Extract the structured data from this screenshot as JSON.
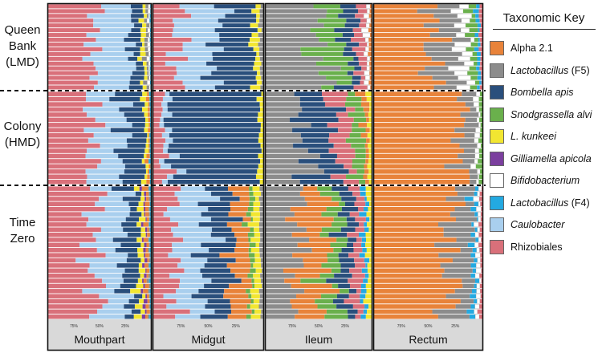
{
  "chart_data": {
    "type": "bar",
    "orientation": "horizontal-stacked-100",
    "title": "",
    "key_title": "Taxonomic Key",
    "xlabel": "",
    "ylabel": "",
    "xlim": [
      100,
      0
    ],
    "x_tick_labels": [
      "75%",
      "50%",
      "25%"
    ],
    "x_ticks": [
      75,
      50,
      25
    ],
    "groups": [
      {
        "name": "Queen Bank (LMD)",
        "lines": [
          "Queen",
          "Bank",
          "(LMD)"
        ],
        "n": 18
      },
      {
        "name": "Colony (HMD)",
        "lines": [
          "Colony",
          "(HMD)"
        ],
        "n": 18
      },
      {
        "name": "Time Zero",
        "lines": [
          "Time",
          "Zero"
        ],
        "n": 26
      }
    ],
    "panels": [
      "Mouthpart",
      "Midgut",
      "Ileum",
      "Rectum"
    ],
    "taxa": [
      {
        "name": "Alpha 2.1",
        "italic": "",
        "plain": "Alpha 2.1",
        "color": "#e8833a"
      },
      {
        "name": "Lactobacillus (F5)",
        "italic": "Lactobacillus",
        "plain": " (F5)",
        "color": "#8c8c8c"
      },
      {
        "name": "Bombella apis",
        "italic": "Bombella apis",
        "plain": "",
        "color": "#2a4f7c"
      },
      {
        "name": "Snodgrassella alvi",
        "italic": "Snodgrassella alvi",
        "plain": "",
        "color": "#6ab04c"
      },
      {
        "name": "L. kunkeei",
        "italic": "L. kunkeei",
        "plain": "",
        "color": "#f2e631"
      },
      {
        "name": "Gilliamella apicola",
        "italic": "Gilliamella apicola",
        "plain": "",
        "color": "#7b3f9e"
      },
      {
        "name": "Bifidobacterium",
        "italic": "Bifidobacterium",
        "plain": "",
        "color": "#ffffff"
      },
      {
        "name": "Lactobacillus (F4)",
        "italic": "Lactobacillus",
        "plain": " (F4)",
        "color": "#23a9e1"
      },
      {
        "name": "Caulobacter",
        "italic": "Caulobacter",
        "plain": "",
        "color": "#a9cfee"
      },
      {
        "name": "Rhizobiales",
        "italic": "",
        "plain": "Rhizobiales",
        "color": "#d9707a"
      }
    ],
    "series_profiles": {
      "Mouthpart": {
        "Queen Bank (LMD)": {
          "Rhizobiales": 42,
          "Caulobacter": 35,
          "Bombella apis": 13,
          "L. kunkeei": 4,
          "Lactobacillus (F5)": 3,
          "Bifidobacterium": 2,
          "Lactobacillus (F4)": 1
        },
        "Colony (HMD)": {
          "Rhizobiales": 40,
          "Caulobacter": 28,
          "Bombella apis": 26,
          "L. kunkeei": 3,
          "Alpha 2.1": 2,
          "Lactobacillus (F4)": 1
        },
        "Time Zero": {
          "Rhizobiales": 44,
          "Caulobacter": 30,
          "Bombella apis": 14,
          "L. kunkeei": 5,
          "Gilliamella apicola": 2,
          "Alpha 2.1": 3,
          "Lactobacillus (F5)": 1,
          "Lactobacillus (F4)": 1
        }
      },
      "Midgut": {
        "Queen Bank (LMD)": {
          "Rhizobiales": 22,
          "Caulobacter": 34,
          "Bombella apis": 35,
          "L. kunkeei": 6,
          "Lactobacillus (F5)": 3
        },
        "Colony (HMD)": {
          "Rhizobiales": 10,
          "Caulobacter": 6,
          "Bombella apis": 80,
          "L. kunkeei": 4
        },
        "Time Zero": {
          "Rhizobiales": 20,
          "Caulobacter": 28,
          "Bombella apis": 22,
          "Alpha 2.1": 17,
          "Snodgrassella alvi": 4,
          "L. kunkeei": 6,
          "Lactobacillus (F5)": 3
        }
      },
      "Ileum": {
        "Queen Bank (LMD)": {
          "Lactobacillus (F5)": 50,
          "Snodgrassella alvi": 24,
          "Bombella apis": 12,
          "Rhizobiales": 8,
          "Bifidobacterium": 4,
          "Alpha 2.1": 2
        },
        "Colony (HMD)": {
          "Lactobacillus (F5)": 38,
          "Bombella apis": 30,
          "Rhizobiales": 14,
          "Snodgrassella alvi": 10,
          "Alpha 2.1": 5,
          "L. kunkeei": 3
        },
        "Time Zero": {
          "Lactobacillus (F5)": 30,
          "Alpha 2.1": 28,
          "Snodgrassella alvi": 14,
          "Bombella apis": 12,
          "Rhizobiales": 8,
          "Lactobacillus (F4)": 4,
          "L. kunkeei": 4
        }
      },
      "Rectum": {
        "Queen Bank (LMD)": {
          "Alpha 2.1": 62,
          "Lactobacillus (F5)": 18,
          "Bifidobacterium": 9,
          "Snodgrassella alvi": 6,
          "Lactobacillus (F4)": 3,
          "Rhizobiales": 2
        },
        "Colony (HMD)": {
          "Alpha 2.1": 82,
          "Lactobacillus (F5)": 12,
          "Bifidobacterium": 3,
          "Snodgrassella alvi": 3
        },
        "Time Zero": {
          "Alpha 2.1": 72,
          "Lactobacillus (F5)": 20,
          "Lactobacillus (F4)": 3,
          "Bifidobacterium": 3,
          "Rhizobiales": 2
        }
      }
    }
  }
}
